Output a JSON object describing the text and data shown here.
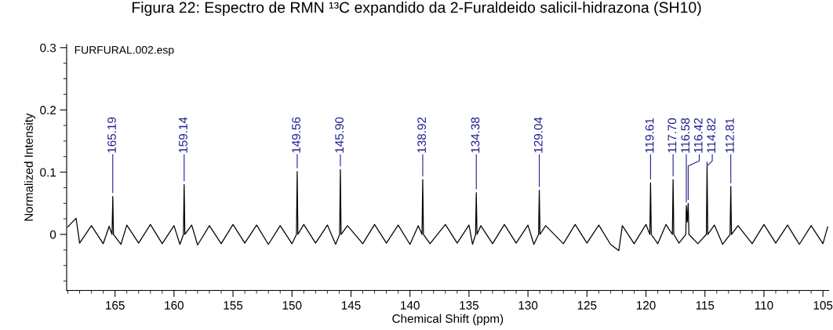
{
  "chart_data": {
    "type": "line",
    "title": "Figura 22: Espectro de RMN ¹³C expandido da 2-Furaldeido salicil-hidrazona (SH10)",
    "xlabel": "Chemical Shift (ppm)",
    "ylabel": "Normalized Intensity",
    "xlim": [
      169.1,
      104.5
    ],
    "xticks": [
      165,
      160,
      155,
      150,
      145,
      140,
      135,
      130,
      125,
      120,
      115,
      110,
      105
    ],
    "ylim": [
      -0.09,
      0.305
    ],
    "yticks": [
      0,
      0.1,
      0.2,
      0.3
    ],
    "grid": false,
    "legend": false,
    "marker": "none",
    "line_style": "solid",
    "series": [
      {
        "color": "#000000",
        "x": [
          169,
          168.3,
          168,
          167,
          166,
          165.5,
          165.25,
          165.19,
          165.13,
          164.5,
          164,
          163,
          162,
          161,
          160,
          159.5,
          159.2,
          159.14,
          159.08,
          158.5,
          158,
          157,
          156,
          155,
          154,
          153,
          152,
          151,
          150,
          149.62,
          149.56,
          149.5,
          149,
          148,
          147,
          146.3,
          145.96,
          145.9,
          145.84,
          145.3,
          144,
          143,
          142,
          141,
          140,
          139.3,
          138.98,
          138.92,
          138.86,
          138.3,
          137,
          136,
          135,
          134.7,
          134.44,
          134.38,
          134.32,
          134,
          133,
          132,
          131,
          130,
          129.5,
          129.1,
          129.04,
          128.98,
          128.5,
          127,
          126,
          125,
          124,
          123,
          122.3,
          122,
          121,
          120,
          119.67,
          119.61,
          119.55,
          119,
          118.3,
          117.76,
          117.7,
          117.64,
          117.2,
          116.62,
          116.58,
          116.5,
          116.42,
          116.36,
          115.6,
          114.88,
          114.82,
          114.76,
          114.2,
          113.5,
          112.87,
          112.81,
          112.75,
          112.2,
          111,
          110,
          109,
          108,
          107,
          106,
          105,
          104.6
        ],
        "values": [
          0.012,
          0.026,
          -0.014,
          0.014,
          -0.015,
          0.013,
          0,
          0.061,
          0,
          -0.016,
          0.015,
          -0.014,
          0.016,
          -0.015,
          0.014,
          -0.016,
          0,
          0.08,
          0,
          0.015,
          -0.017,
          0.014,
          -0.015,
          0.016,
          -0.014,
          0.015,
          -0.016,
          0.014,
          -0.015,
          0,
          0.101,
          0,
          0.016,
          -0.014,
          0.015,
          -0.016,
          0,
          0.104,
          0,
          0.014,
          -0.015,
          0.016,
          -0.014,
          0.015,
          -0.016,
          0.014,
          0,
          0.088,
          0,
          -0.015,
          0.016,
          -0.014,
          0.015,
          -0.016,
          0,
          0.067,
          0,
          0.014,
          -0.015,
          0.016,
          -0.014,
          0.015,
          -0.016,
          0,
          0.071,
          0,
          0.014,
          -0.015,
          0.016,
          -0.014,
          0.015,
          -0.016,
          -0.026,
          0.014,
          -0.015,
          0.016,
          0,
          0.083,
          0,
          -0.015,
          0.016,
          0,
          0.088,
          0,
          -0.014,
          0,
          0.046,
          0.02,
          0.05,
          0,
          -0.015,
          0,
          0.11,
          0,
          0.015,
          -0.016,
          0,
          0.077,
          0,
          0.014,
          -0.015,
          0.016,
          -0.014,
          0.015,
          -0.016,
          0.014,
          -0.015,
          0.012
        ]
      }
    ],
    "annotations": [
      "FURFURAL.002.esp",
      {
        "text": "165.19",
        "x": 165.19,
        "y": 0.061
      },
      {
        "text": "159.14",
        "x": 159.14,
        "y": 0.08
      },
      {
        "text": "149.56",
        "x": 149.56,
        "y": 0.101
      },
      {
        "text": "145.90",
        "x": 145.9,
        "y": 0.104
      },
      {
        "text": "138.92",
        "x": 138.92,
        "y": 0.088
      },
      {
        "text": "134.38",
        "x": 134.38,
        "y": 0.067
      },
      {
        "text": "129.04",
        "x": 129.04,
        "y": 0.071
      },
      {
        "text": "119.61",
        "x": 119.61,
        "y": 0.083
      },
      {
        "text": "117.70",
        "x": 117.7,
        "y": 0.088
      },
      {
        "text": "116.58",
        "x": 116.58,
        "y": 0.046
      },
      {
        "text": "116.42",
        "x": 116.42,
        "y": 0.05
      },
      {
        "text": "114.82",
        "x": 114.82,
        "y": 0.11
      },
      {
        "text": "112.81",
        "x": 112.81,
        "y": 0.077
      }
    ]
  }
}
